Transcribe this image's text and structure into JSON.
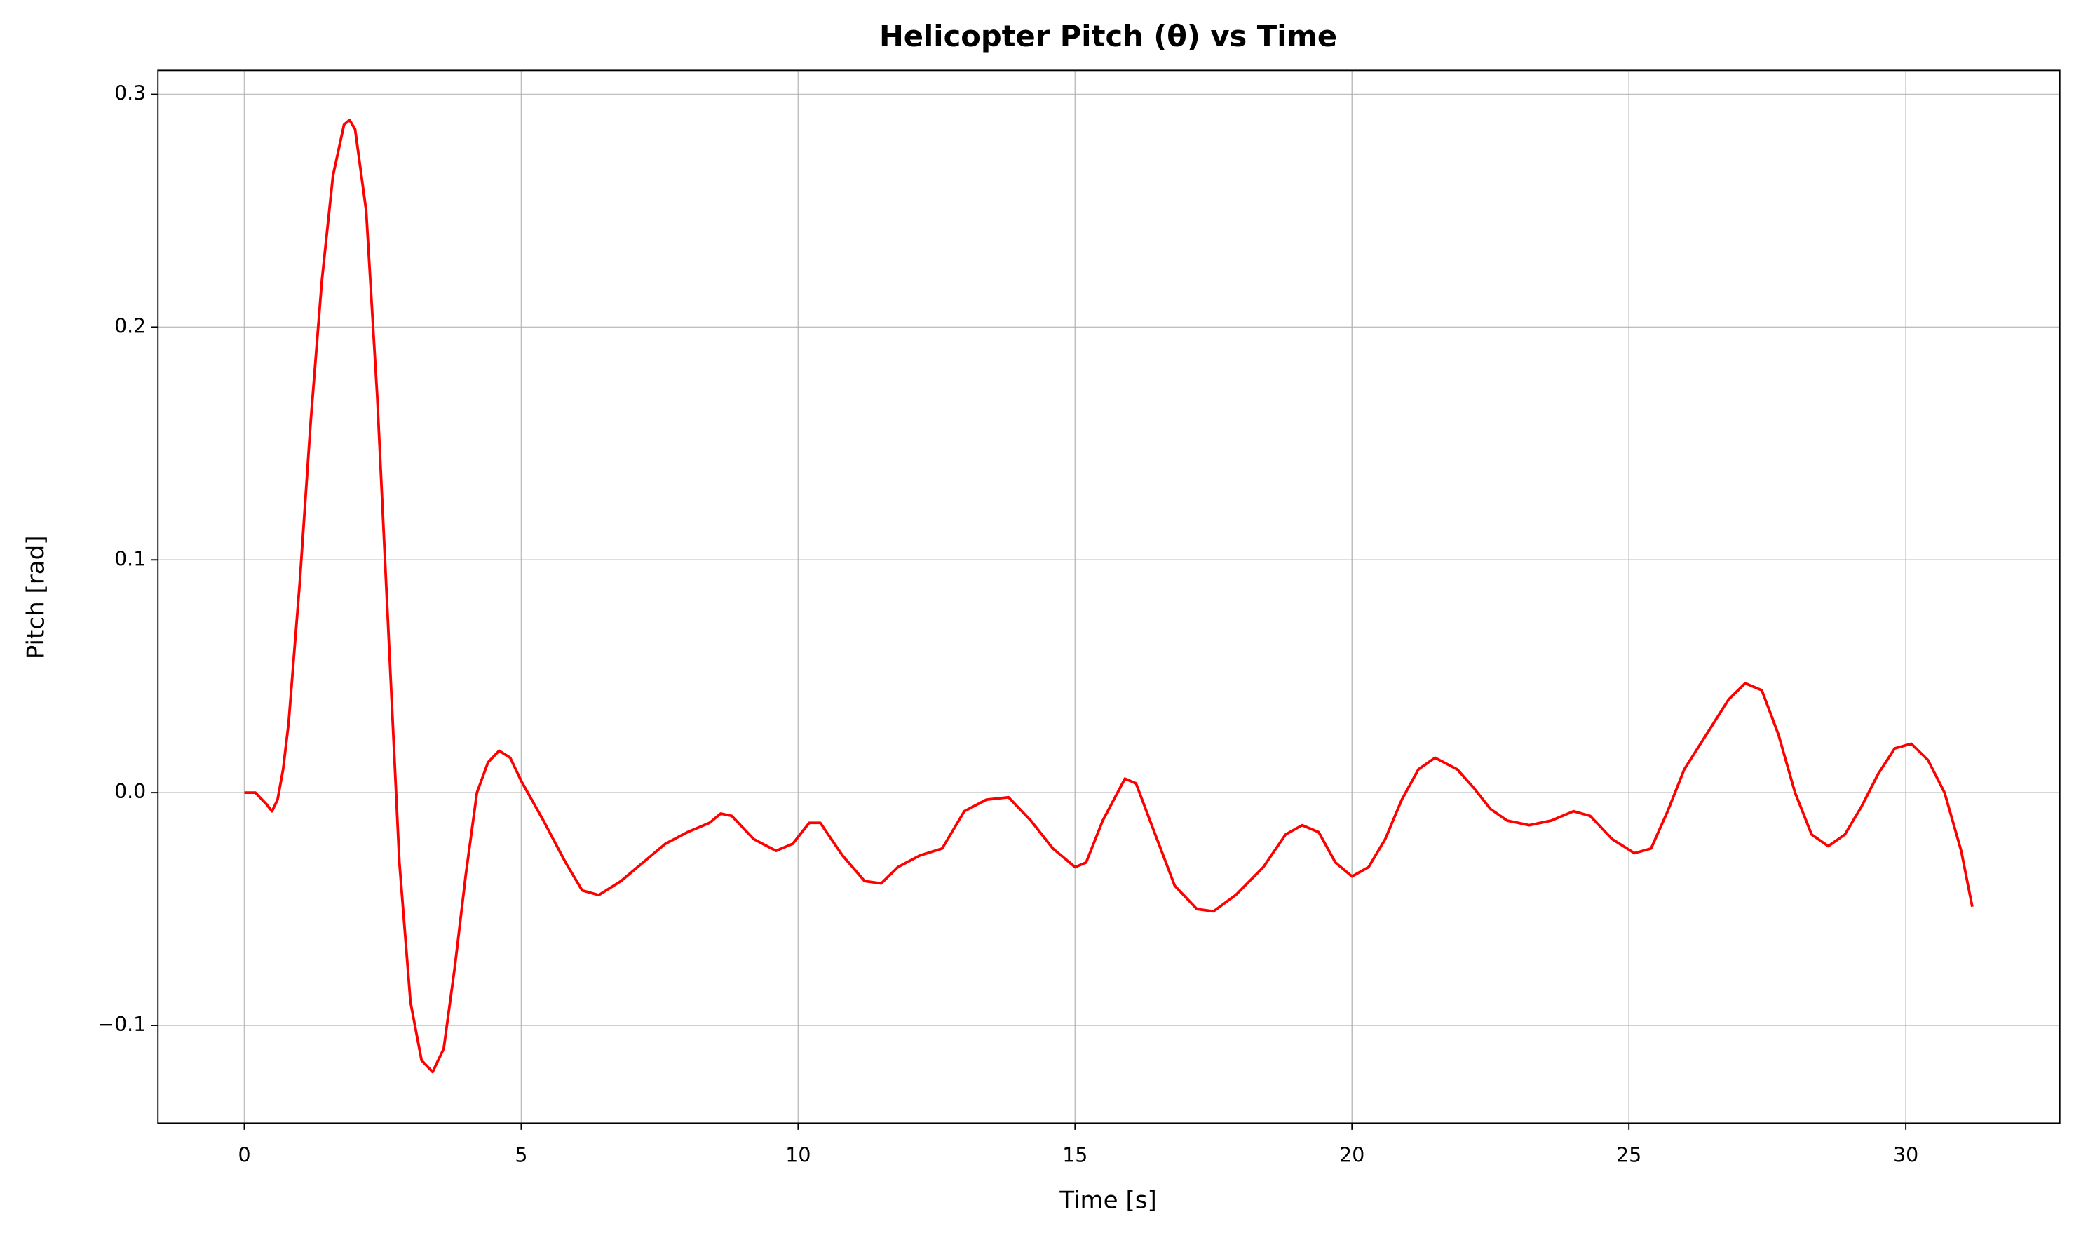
{
  "chart_data": {
    "type": "line",
    "title": "Helicopter Pitch (θ) vs Time",
    "xlabel": "Time [s]",
    "ylabel": "Pitch [rad]",
    "color": "#ff0000",
    "grid": true,
    "xlim": [
      -1.56,
      32.78
    ],
    "ylim": [
      -0.142,
      0.3103
    ],
    "xticks": [
      0,
      5,
      10,
      15,
      20,
      25,
      30
    ],
    "yticks": [
      {
        "value": -0.1,
        "label": "−0.1"
      },
      {
        "value": 0,
        "label": "0.0"
      },
      0.1,
      0.2,
      0.3
    ],
    "x": [
      0,
      0.2,
      0.4,
      0.5,
      0.6,
      0.7,
      0.8,
      1.0,
      1.2,
      1.4,
      1.6,
      1.8,
      1.9,
      2.0,
      2.2,
      2.4,
      2.6,
      2.8,
      3.0,
      3.2,
      3.4,
      3.6,
      3.8,
      4.0,
      4.2,
      4.4,
      4.6,
      4.8,
      5.0,
      5.4,
      5.8,
      6.1,
      6.4,
      6.8,
      7.2,
      7.6,
      8.0,
      8.4,
      8.6,
      8.8,
      9.2,
      9.6,
      9.9,
      10.2,
      10.4,
      10.8,
      11.2,
      11.5,
      11.8,
      12.2,
      12.6,
      13.0,
      13.4,
      13.8,
      14.2,
      14.6,
      15.0,
      15.2,
      15.5,
      15.9,
      16.1,
      16.4,
      16.8,
      17.2,
      17.5,
      17.9,
      18.4,
      18.8,
      19.1,
      19.4,
      19.7,
      20.0,
      20.3,
      20.6,
      20.9,
      21.2,
      21.5,
      21.9,
      22.2,
      22.5,
      22.8,
      23.2,
      23.6,
      24.0,
      24.3,
      24.7,
      25.1,
      25.4,
      25.7,
      26.0,
      26.4,
      26.8,
      27.1,
      27.4,
      27.7,
      28.0,
      28.3,
      28.6,
      28.9,
      29.2,
      29.5,
      29.8,
      30.1,
      30.4,
      30.7,
      31.0,
      31.2
    ],
    "values": [
      0,
      0,
      -0.005,
      -0.008,
      -0.003,
      0.01,
      0.03,
      0.09,
      0.16,
      0.22,
      0.265,
      0.287,
      0.289,
      0.285,
      0.25,
      0.17,
      0.07,
      -0.03,
      -0.09,
      -0.115,
      -0.12,
      -0.11,
      -0.075,
      -0.035,
      0.0,
      0.013,
      0.018,
      0.015,
      0.005,
      -0.012,
      -0.03,
      -0.042,
      -0.044,
      -0.038,
      -0.03,
      -0.022,
      -0.017,
      -0.013,
      -0.009,
      -0.01,
      -0.02,
      -0.025,
      -0.022,
      -0.013,
      -0.013,
      -0.027,
      -0.038,
      -0.039,
      -0.032,
      -0.027,
      -0.024,
      -0.008,
      -0.003,
      -0.002,
      -0.012,
      -0.024,
      -0.032,
      -0.03,
      -0.012,
      0.006,
      0.004,
      -0.015,
      -0.04,
      -0.05,
      -0.051,
      -0.044,
      -0.032,
      -0.018,
      -0.014,
      -0.017,
      -0.03,
      -0.036,
      -0.032,
      -0.02,
      -0.003,
      0.01,
      0.015,
      0.01,
      0.002,
      -0.007,
      -0.012,
      -0.014,
      -0.012,
      -0.008,
      -0.01,
      -0.02,
      -0.026,
      -0.024,
      -0.008,
      0.01,
      0.025,
      0.04,
      0.047,
      0.044,
      0.025,
      0.0,
      -0.018,
      -0.023,
      -0.018,
      -0.006,
      0.008,
      0.019,
      0.021,
      0.014,
      0.0,
      -0.025,
      -0.049
    ]
  }
}
